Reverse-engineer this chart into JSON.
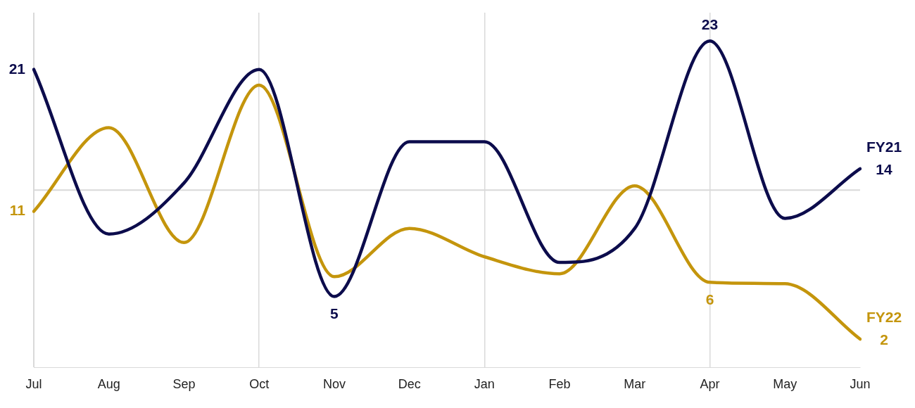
{
  "chart_data": {
    "type": "line",
    "categories": [
      "Jul",
      "Aug",
      "Sep",
      "Oct",
      "Nov",
      "Dec",
      "Jan",
      "Feb",
      "Mar",
      "Apr",
      "May",
      "Jun"
    ],
    "series": [
      {
        "name": "FY21",
        "color": "#0c0c4c",
        "values": [
          21,
          9.4,
          13,
          21,
          5,
          15.9,
          15.9,
          7.4,
          9.8,
          23,
          10.5,
          14
        ],
        "value_labels": [
          "21",
          null,
          null,
          null,
          "5",
          null,
          null,
          null,
          null,
          "23",
          null,
          "14"
        ]
      },
      {
        "name": "FY22",
        "color": "#c4950c",
        "values": [
          11,
          16.9,
          8.8,
          19.9,
          6.4,
          9.8,
          7.8,
          6.6,
          12.8,
          6,
          5.9,
          2
        ],
        "value_labels": [
          "11",
          null,
          null,
          null,
          null,
          null,
          null,
          null,
          null,
          "6",
          null,
          "2"
        ]
      }
    ],
    "ylim": [
      0,
      25
    ],
    "ref_lines": [
      {
        "axis": "y",
        "value": 12.5,
        "color": "#d9d9d9"
      }
    ],
    "tick_labels": "x",
    "grid": "x",
    "legend": false,
    "marker": "none",
    "line_style": "solid"
  }
}
